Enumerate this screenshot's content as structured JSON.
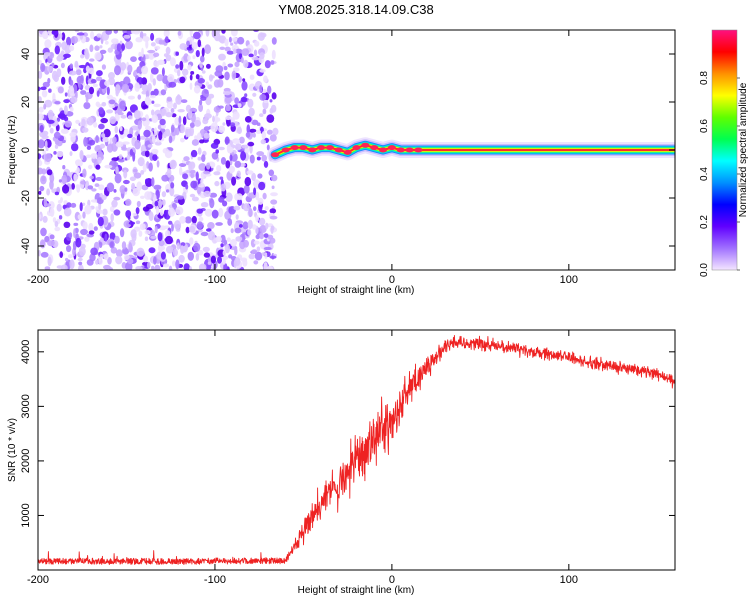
{
  "figure_title": "YM08.2025.318.14.09.C38",
  "chart_data": [
    {
      "type": "heatmap",
      "name": "spectrogram",
      "xlabel": "Height of straight line (km)",
      "ylabel": "Frequency (Hz)",
      "xlim": [
        -200,
        160
      ],
      "ylim": [
        -50,
        50
      ],
      "xticks": [
        -200,
        -100,
        0,
        100
      ],
      "yticks": [
        -40,
        -20,
        0,
        20,
        40
      ],
      "noise_region_x": [
        -200,
        -66
      ],
      "signal_onset_x": -66,
      "signal_track": {
        "x": [
          -66,
          -60,
          -55,
          -50,
          -45,
          -40,
          -35,
          -30,
          -25,
          -20,
          -15,
          -10,
          -5,
          0,
          5,
          10,
          15,
          20,
          40,
          80,
          120,
          160
        ],
        "y": [
          -2,
          0,
          1,
          1,
          0,
          1,
          1,
          0,
          -1,
          1,
          2,
          1,
          0,
          1,
          0,
          0,
          0,
          0,
          0,
          0,
          0,
          0
        ]
      },
      "colorbar": {
        "label": "Normalized spectral amplitude",
        "ticks": [
          0.0,
          0.2,
          0.4,
          0.6,
          0.8
        ],
        "range": [
          0,
          1
        ],
        "colors": [
          "#f4e6ff",
          "#a070ff",
          "#6000ff",
          "#0000ff",
          "#0090ff",
          "#00ffff",
          "#00ff50",
          "#60ff00",
          "#ffff00",
          "#ff9000",
          "#ff0000",
          "#ff1080"
        ]
      }
    },
    {
      "type": "line",
      "name": "snr",
      "xlabel": "Height of straight line (km)",
      "ylabel": "SNR (10 * v/v)",
      "xlim": [
        -200,
        160
      ],
      "ylim": [
        0,
        4400
      ],
      "xticks": [
        -200,
        -100,
        0,
        100
      ],
      "yticks": [
        1000,
        2000,
        3000,
        4000
      ],
      "color": "#ee2222",
      "series": [
        {
          "name": "SNR",
          "x": [
            -200,
            -180,
            -160,
            -140,
            -120,
            -100,
            -80,
            -60,
            -55,
            -50,
            -45,
            -40,
            -35,
            -30,
            -25,
            -20,
            -15,
            -10,
            -5,
            0,
            5,
            10,
            15,
            20,
            25,
            30,
            35,
            40,
            50,
            60,
            70,
            80,
            90,
            100,
            110,
            120,
            130,
            140,
            150,
            160
          ],
          "values": [
            150,
            160,
            150,
            155,
            150,
            160,
            160,
            165,
            450,
            700,
            1000,
            1200,
            1500,
            1550,
            1750,
            2200,
            2100,
            2400,
            2600,
            2750,
            3000,
            3300,
            3500,
            3700,
            3900,
            4100,
            4200,
            4150,
            4150,
            4100,
            4050,
            4000,
            3950,
            3900,
            3800,
            3750,
            3700,
            3650,
            3600,
            3450
          ],
          "noise_amplitude": [
            80,
            80,
            80,
            80,
            80,
            80,
            80,
            80,
            150,
            250,
            400,
            450,
            500,
            550,
            600,
            600,
            650,
            650,
            650,
            600,
            550,
            500,
            400,
            300,
            200,
            150,
            150,
            150,
            150,
            150,
            150,
            150,
            150,
            150,
            150,
            150,
            150,
            150,
            150,
            150
          ]
        }
      ]
    }
  ]
}
